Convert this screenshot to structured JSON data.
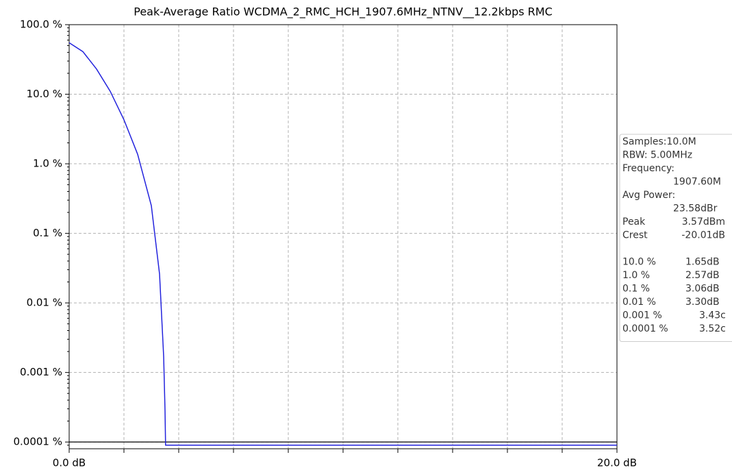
{
  "chart_data": {
    "type": "line",
    "title": "Peak-Average Ratio WCDMA_2_RMC_HCH_1907.6MHz_NTNV__12.2kbps RMC",
    "x": [
      0,
      0.5,
      1,
      1.5,
      2,
      2.5,
      3,
      3.3,
      3.45,
      3.5,
      3.52,
      20
    ],
    "values": [
      55,
      41,
      23,
      11,
      4.3,
      1.37,
      0.25,
      0.026,
      0.0017,
      0.00028,
      9e-05,
      9e-05
    ],
    "color": "#2222dd",
    "xlim": [
      0,
      20
    ],
    "xticks": [
      {
        "value": 0,
        "label": "0.0 dB"
      },
      {
        "value": 2,
        "label": null
      },
      {
        "value": 4,
        "label": null
      },
      {
        "value": 6,
        "label": null
      },
      {
        "value": 8,
        "label": null
      },
      {
        "value": 10,
        "label": null
      },
      {
        "value": 12,
        "label": null
      },
      {
        "value": 14,
        "label": null
      },
      {
        "value": 16,
        "label": null
      },
      {
        "value": 18,
        "label": null
      },
      {
        "value": 20,
        "label": "20.0 dB"
      }
    ],
    "ylim": [
      8e-05,
      100
    ],
    "yticks": [
      {
        "value": 100,
        "label": "100.0 %"
      },
      {
        "value": 10,
        "label": "10.0 %"
      },
      {
        "value": 1,
        "label": "1.0 %"
      },
      {
        "value": 0.1,
        "label": "0.1 %"
      },
      {
        "value": 0.01,
        "label": "0.01 %"
      },
      {
        "value": 0.001,
        "label": "0.001 %"
      },
      {
        "value": 0.0001,
        "label": "0.0001 %"
      }
    ],
    "yscale": "log",
    "grid": true,
    "reference_line": 0.0001,
    "stats": {
      "lines": [
        {
          "text": "Samples:10.0M",
          "indent": false
        },
        {
          "text": "RBW: 5.00MHz",
          "indent": false
        },
        {
          "text": "Frequency:",
          "indent": false
        },
        {
          "text": "1907.60M",
          "indent": true
        },
        {
          "text": "Avg Power:",
          "indent": false
        },
        {
          "text": "23.58dBr",
          "indent": true
        }
      ],
      "rows": [
        [
          "Peak",
          "3.57dBm"
        ],
        [
          "Crest",
          "-20.01dB"
        ]
      ],
      "percentiles": [
        [
          "10.0 %",
          "1.65dB"
        ],
        [
          "1.0 %",
          "2.57dB"
        ],
        [
          "0.1 %",
          "3.06dB"
        ],
        [
          "0.01 %",
          "3.30dB"
        ],
        [
          "0.001 %",
          "3.43c"
        ],
        [
          "0.0001 %",
          "3.52c"
        ]
      ]
    }
  }
}
